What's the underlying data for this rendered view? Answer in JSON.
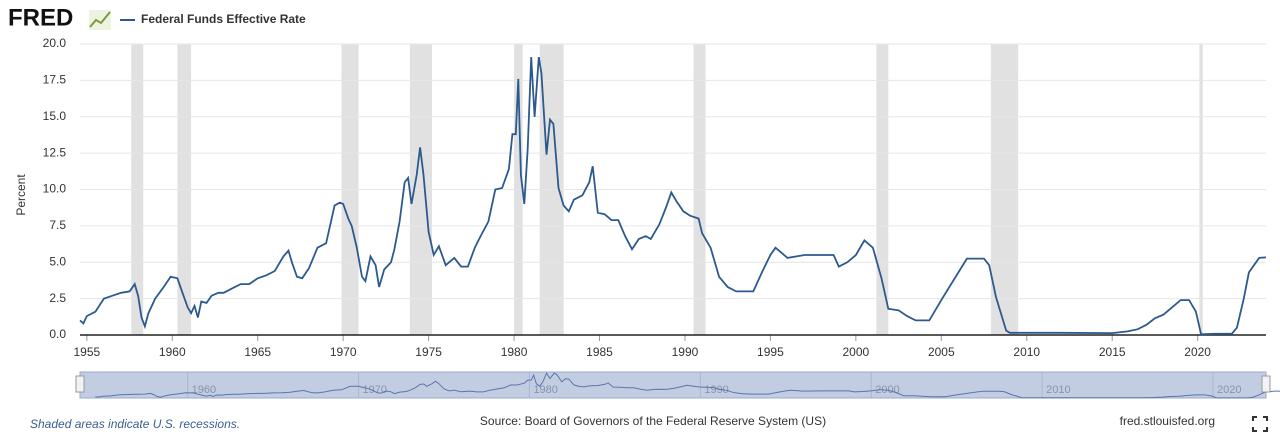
{
  "brand": "FRED",
  "chart_data": {
    "type": "line",
    "y_label": "Percent",
    "note": "Shaded areas indicate U.S. recessions.",
    "source": "Source: Board of Governors of the Federal Reserve System (US)",
    "site": "fred.stlouisfed.org",
    "xlim": [
      1954.6,
      2024.0
    ],
    "xticks": [
      1955,
      1960,
      1965,
      1970,
      1975,
      1980,
      1985,
      1990,
      1995,
      2000,
      2005,
      2010,
      2015,
      2020
    ],
    "ylim": [
      0,
      20
    ],
    "yticks": [
      {
        "value": 0,
        "label": "0.0"
      },
      2.5,
      {
        "value": 5,
        "label": "5.0"
      },
      7.5,
      {
        "value": 10,
        "label": "10.0"
      },
      12.5,
      {
        "value": 15,
        "label": "15.0"
      },
      17.5,
      {
        "value": 20,
        "label": "20.0"
      }
    ],
    "grid": true,
    "recessions": [
      [
        1957.6,
        1958.3
      ],
      [
        1960.3,
        1961.1
      ],
      [
        1969.9,
        1970.9
      ],
      [
        1973.9,
        1975.2
      ],
      [
        1980.0,
        1980.5
      ],
      [
        1981.5,
        1982.9
      ],
      [
        1990.5,
        1991.2
      ],
      [
        2001.2,
        2001.9
      ],
      [
        2007.9,
        2009.5
      ],
      [
        2020.1,
        2020.3
      ]
    ],
    "x": [
      1954.6,
      1954.8,
      1955.0,
      1955.5,
      1956.0,
      1956.5,
      1957.0,
      1957.5,
      1957.8,
      1958.0,
      1958.2,
      1958.4,
      1958.6,
      1959.0,
      1959.5,
      1959.9,
      1960.3,
      1960.6,
      1960.9,
      1961.1,
      1961.3,
      1961.5,
      1961.7,
      1962.0,
      1962.3,
      1962.7,
      1963.0,
      1963.5,
      1964.0,
      1964.5,
      1965.0,
      1965.5,
      1966.0,
      1966.5,
      1966.8,
      1967.0,
      1967.3,
      1967.6,
      1968.0,
      1968.5,
      1969.0,
      1969.5,
      1969.8,
      1970.0,
      1970.3,
      1970.5,
      1970.8,
      1971.1,
      1971.3,
      1971.6,
      1971.9,
      1972.1,
      1972.4,
      1972.8,
      1973.0,
      1973.3,
      1973.6,
      1973.8,
      1974.0,
      1974.3,
      1974.5,
      1974.7,
      1975.0,
      1975.3,
      1975.6,
      1976.0,
      1976.5,
      1976.9,
      1977.3,
      1977.7,
      1978.0,
      1978.5,
      1978.9,
      1979.3,
      1979.7,
      1979.9,
      1980.1,
      1980.25,
      1980.4,
      1980.6,
      1980.8,
      1981.0,
      1981.2,
      1981.45,
      1981.6,
      1981.9,
      1982.1,
      1982.3,
      1982.6,
      1982.9,
      1983.2,
      1983.5,
      1984.0,
      1984.4,
      1984.6,
      1984.9,
      1985.3,
      1985.7,
      1986.1,
      1986.5,
      1986.9,
      1987.3,
      1987.7,
      1988.0,
      1988.5,
      1988.9,
      1989.2,
      1989.5,
      1989.9,
      1990.3,
      1990.8,
      1991.0,
      1991.5,
      1992.0,
      1992.5,
      1993.0,
      1993.7,
      1994.0,
      1994.5,
      1995.0,
      1995.3,
      1996.0,
      1997.0,
      1998.0,
      1998.7,
      1999.0,
      1999.5,
      2000.0,
      2000.5,
      2001.0,
      2001.5,
      2001.9,
      2002.5,
      2003.0,
      2003.5,
      2004.3,
      2005.0,
      2006.0,
      2006.5,
      2007.5,
      2007.8,
      2008.2,
      2008.8,
      2009.0,
      2010.0,
      2012.0,
      2015.0,
      2015.9,
      2016.5,
      2017.0,
      2017.5,
      2018.0,
      2018.5,
      2019.0,
      2019.5,
      2019.9,
      2020.2,
      2021.0,
      2022.0,
      2022.3,
      2022.7,
      2023.0,
      2023.6,
      2024.0
    ],
    "series": [
      {
        "name": "Federal Funds Effective Rate",
        "color": "#2c5a8e",
        "values": [
          1.0,
          0.8,
          1.3,
          1.6,
          2.5,
          2.7,
          2.9,
          3.0,
          3.5,
          2.7,
          1.2,
          0.6,
          1.5,
          2.5,
          3.3,
          4.0,
          3.9,
          2.9,
          1.9,
          1.5,
          2.0,
          1.2,
          2.3,
          2.2,
          2.7,
          2.9,
          2.9,
          3.2,
          3.5,
          3.5,
          3.9,
          4.1,
          4.4,
          5.4,
          5.8,
          5.0,
          4.0,
          3.9,
          4.6,
          6.0,
          6.3,
          8.9,
          9.1,
          9.0,
          8.0,
          7.5,
          6.0,
          4.0,
          3.7,
          5.4,
          4.8,
          3.3,
          4.5,
          5.0,
          5.9,
          7.8,
          10.5,
          10.8,
          9.0,
          11.0,
          12.9,
          11.0,
          7.1,
          5.5,
          6.1,
          4.8,
          5.3,
          4.7,
          4.7,
          6.0,
          6.7,
          7.8,
          10.0,
          10.1,
          11.4,
          13.8,
          13.8,
          17.6,
          11.0,
          9.0,
          12.8,
          19.1,
          15.0,
          19.1,
          18.0,
          12.4,
          14.8,
          14.5,
          10.1,
          8.9,
          8.5,
          9.3,
          9.6,
          10.5,
          11.6,
          8.4,
          8.3,
          7.9,
          7.9,
          6.8,
          5.9,
          6.6,
          6.8,
          6.6,
          7.6,
          8.8,
          9.8,
          9.2,
          8.5,
          8.2,
          8.0,
          7.0,
          6.0,
          4.0,
          3.3,
          3.0,
          3.0,
          3.0,
          4.3,
          5.5,
          6.0,
          5.3,
          5.5,
          5.5,
          5.5,
          4.7,
          5.0,
          5.5,
          6.5,
          6.0,
          3.9,
          1.8,
          1.7,
          1.3,
          1.0,
          1.0,
          2.4,
          4.3,
          5.25,
          5.25,
          4.8,
          2.6,
          0.3,
          0.15,
          0.15,
          0.15,
          0.13,
          0.25,
          0.4,
          0.7,
          1.15,
          1.4,
          1.9,
          2.4,
          2.4,
          1.6,
          0.05,
          0.08,
          0.08,
          0.5,
          2.5,
          4.3,
          5.3,
          5.33
        ]
      }
    ],
    "navigator": {
      "xlim": [
        1953.7,
        2023.1
      ],
      "xticks": [
        1960,
        1970,
        1980,
        1990,
        2000,
        2010,
        2020
      ]
    }
  }
}
